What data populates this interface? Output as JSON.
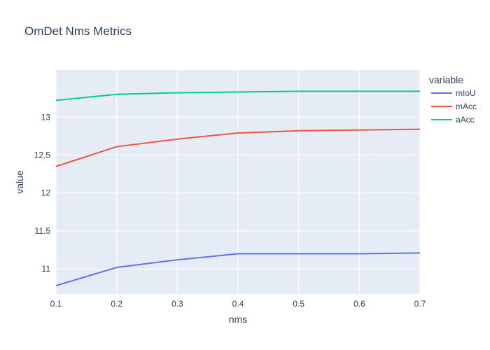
{
  "chart_data": {
    "type": "line",
    "title": "OmDet Nms Metrics",
    "xlabel": "nms",
    "ylabel": "value",
    "x": [
      0.1,
      0.2,
      0.3,
      0.4,
      0.5,
      0.6,
      0.7
    ],
    "x_tick_labels": [
      "0.1",
      "0.2",
      "0.3",
      "0.4",
      "0.5",
      "0.6",
      "0.7"
    ],
    "xlim": [
      0.1,
      0.7
    ],
    "y_ticks": [
      11,
      11.5,
      12,
      12.5,
      13
    ],
    "y_tick_labels": [
      "11",
      "11.5",
      "12",
      "12.5",
      "13"
    ],
    "ylim": [
      10.67,
      13.62
    ],
    "grid": true,
    "legend": {
      "title": "variable",
      "placement": "right"
    },
    "series": [
      {
        "name": "mIoU",
        "color": "#636efa",
        "values": [
          10.78,
          11.02,
          11.12,
          11.2,
          11.2,
          11.2,
          11.21
        ]
      },
      {
        "name": "mAcc",
        "color": "#ef553b",
        "values": [
          12.35,
          12.61,
          12.71,
          12.79,
          12.82,
          12.83,
          12.84
        ]
      },
      {
        "name": "aAcc",
        "color": "#00cc96",
        "values": [
          13.22,
          13.3,
          13.32,
          13.33,
          13.34,
          13.34,
          13.34
        ]
      }
    ],
    "background_color": "#e5ecf6",
    "grid_color": "#ffffff"
  }
}
